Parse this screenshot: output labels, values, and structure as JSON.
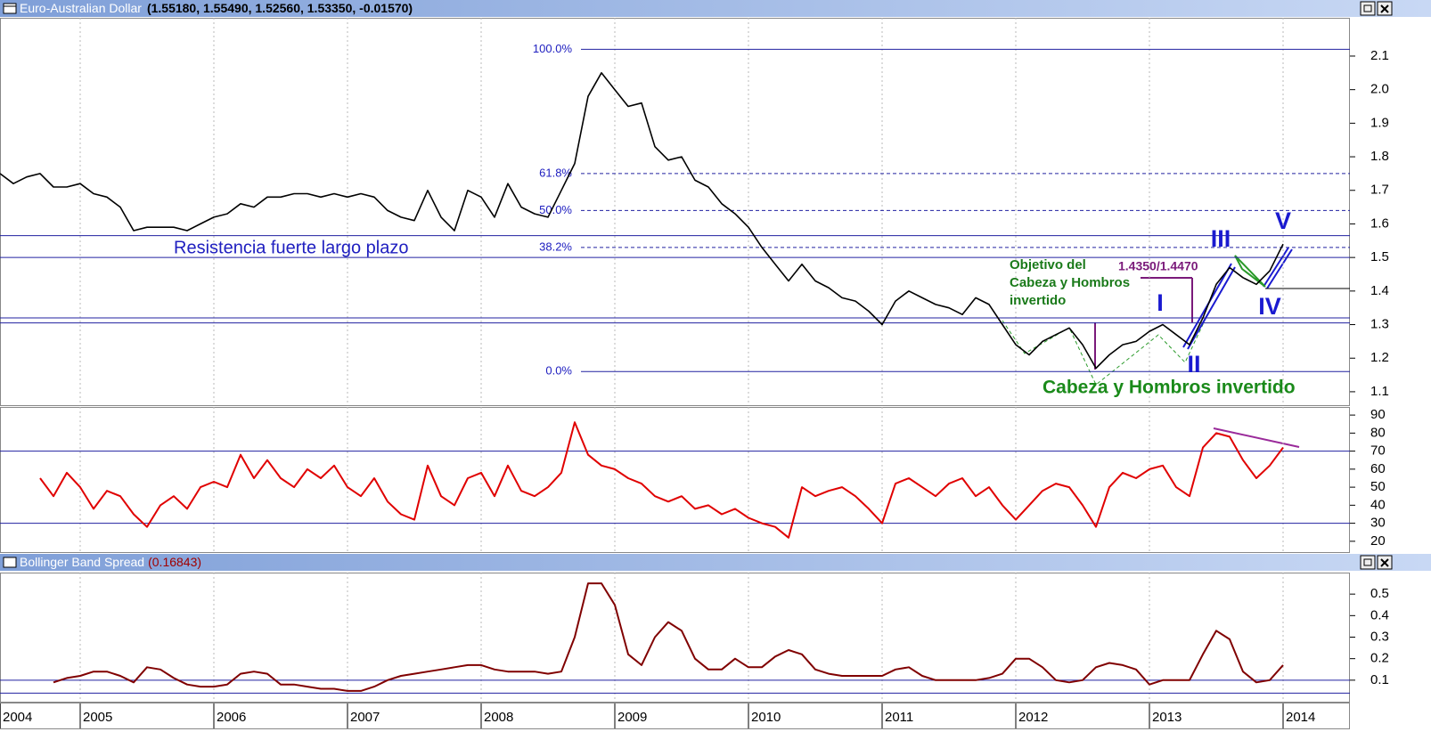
{
  "chart_data": [
    {
      "type": "line",
      "title": "Euro-Australian Dollar",
      "subtitle": "(1.55180, 1.55490, 1.52560, 1.53350, -0.01570)",
      "color": "#000000",
      "x": [
        2004.4,
        2004.5,
        2004.6,
        2004.7,
        2004.8,
        2004.9,
        2005.0,
        2005.1,
        2005.2,
        2005.3,
        2005.4,
        2005.5,
        2005.6,
        2005.7,
        2005.8,
        2005.9,
        2006.0,
        2006.1,
        2006.2,
        2006.3,
        2006.4,
        2006.5,
        2006.6,
        2006.7,
        2006.8,
        2006.9,
        2007.0,
        2007.1,
        2007.2,
        2007.3,
        2007.4,
        2007.5,
        2007.6,
        2007.7,
        2007.8,
        2007.9,
        2008.0,
        2008.1,
        2008.2,
        2008.3,
        2008.4,
        2008.5,
        2008.6,
        2008.7,
        2008.8,
        2008.9,
        2009.0,
        2009.1,
        2009.2,
        2009.3,
        2009.4,
        2009.5,
        2009.6,
        2009.7,
        2009.8,
        2009.9,
        2010.0,
        2010.1,
        2010.2,
        2010.3,
        2010.4,
        2010.5,
        2010.6,
        2010.7,
        2010.8,
        2010.9,
        2011.0,
        2011.1,
        2011.2,
        2011.3,
        2011.4,
        2011.5,
        2011.6,
        2011.7,
        2011.8,
        2011.9,
        2012.0,
        2012.1,
        2012.2,
        2012.3,
        2012.4,
        2012.5,
        2012.6,
        2012.7,
        2012.8,
        2012.9,
        2013.0,
        2013.1,
        2013.2,
        2013.3,
        2013.4,
        2013.5,
        2013.6,
        2013.7,
        2013.8,
        2013.9,
        2014.0
      ],
      "values": [
        1.75,
        1.72,
        1.74,
        1.75,
        1.71,
        1.71,
        1.72,
        1.69,
        1.68,
        1.65,
        1.58,
        1.59,
        1.59,
        1.59,
        1.58,
        1.6,
        1.62,
        1.63,
        1.66,
        1.65,
        1.68,
        1.68,
        1.69,
        1.69,
        1.68,
        1.69,
        1.68,
        1.69,
        1.68,
        1.64,
        1.62,
        1.61,
        1.7,
        1.62,
        1.58,
        1.7,
        1.68,
        1.62,
        1.72,
        1.65,
        1.63,
        1.62,
        1.7,
        1.78,
        1.98,
        2.05,
        2.0,
        1.95,
        1.96,
        1.83,
        1.79,
        1.8,
        1.73,
        1.71,
        1.66,
        1.63,
        1.59,
        1.53,
        1.48,
        1.43,
        1.48,
        1.43,
        1.41,
        1.38,
        1.37,
        1.34,
        1.3,
        1.37,
        1.4,
        1.38,
        1.36,
        1.35,
        1.33,
        1.38,
        1.36,
        1.3,
        1.24,
        1.21,
        1.25,
        1.27,
        1.29,
        1.24,
        1.17,
        1.21,
        1.24,
        1.25,
        1.28,
        1.3,
        1.27,
        1.24,
        1.32,
        1.42,
        1.47,
        1.44,
        1.42,
        1.46,
        1.54
      ],
      "xlim": [
        2004.4,
        2014.5
      ],
      "ylim": [
        1.06,
        2.214
      ],
      "yticks": [
        1.1,
        1.2,
        1.3,
        1.4,
        1.5,
        1.6,
        1.7,
        1.8,
        1.9,
        {
          "value": 2,
          "label": "2.0"
        },
        2.1
      ],
      "grid": true,
      "hlines": [
        1.565,
        1.5,
        1.32,
        1.305
      ],
      "fib_levels": [
        {
          "value": 2.12,
          "label": "100.0%"
        },
        {
          "value": 1.75,
          "label": "61.8%"
        },
        {
          "value": 1.64,
          "label": "50.0%"
        },
        {
          "value": 1.53,
          "label": "38.2%"
        },
        {
          "value": 1.16,
          "label": "0.0%"
        }
      ],
      "annotations": [
        "Resistencia fuerte largo plazo",
        "1.4350/1.4470",
        "Cabeza y Hombros invertido"
      ],
      "objective": [
        "Objetivo del",
        "Cabeza y Hombros",
        "invertido"
      ],
      "waves": [
        "I",
        "II",
        "III",
        "IV",
        "V"
      ]
    },
    {
      "type": "line",
      "color": "#e00000",
      "x": [
        2004.4,
        2004.5,
        2004.6,
        2004.7,
        2004.8,
        2004.9,
        2005.0,
        2005.1,
        2005.2,
        2005.3,
        2005.4,
        2005.5,
        2005.6,
        2005.7,
        2005.8,
        2005.9,
        2006.0,
        2006.1,
        2006.2,
        2006.3,
        2006.4,
        2006.5,
        2006.6,
        2006.7,
        2006.8,
        2006.9,
        2007.0,
        2007.1,
        2007.2,
        2007.3,
        2007.4,
        2007.5,
        2007.6,
        2007.7,
        2007.8,
        2007.9,
        2008.0,
        2008.1,
        2008.2,
        2008.3,
        2008.4,
        2008.5,
        2008.6,
        2008.7,
        2008.8,
        2008.9,
        2009.0,
        2009.1,
        2009.2,
        2009.3,
        2009.4,
        2009.5,
        2009.6,
        2009.7,
        2009.8,
        2009.9,
        2010.0,
        2010.1,
        2010.2,
        2010.3,
        2010.4,
        2010.5,
        2010.6,
        2010.7,
        2010.8,
        2010.9,
        2011.0,
        2011.1,
        2011.2,
        2011.3,
        2011.4,
        2011.5,
        2011.6,
        2011.7,
        2011.8,
        2011.9,
        2012.0,
        2012.1,
        2012.2,
        2012.3,
        2012.4,
        2012.5,
        2012.6,
        2012.7,
        2012.8,
        2012.9,
        2013.0,
        2013.1,
        2013.2,
        2013.3,
        2013.4,
        2013.5,
        2013.6,
        2013.7,
        2013.8,
        2013.9,
        2014.0
      ],
      "values": [
        null,
        null,
        null,
        55,
        45,
        58,
        50,
        38,
        48,
        45,
        35,
        28,
        40,
        45,
        38,
        50,
        53,
        50,
        68,
        55,
        65,
        55,
        50,
        60,
        55,
        62,
        50,
        45,
        55,
        42,
        35,
        32,
        62,
        45,
        40,
        55,
        58,
        45,
        62,
        48,
        45,
        50,
        58,
        86,
        68,
        62,
        60,
        55,
        52,
        45,
        42,
        45,
        38,
        40,
        35,
        38,
        33,
        30,
        28,
        22,
        50,
        45,
        48,
        50,
        45,
        38,
        30,
        52,
        55,
        50,
        45,
        52,
        55,
        45,
        50,
        40,
        32,
        40,
        48,
        52,
        50,
        40,
        28,
        50,
        58,
        55,
        60,
        62,
        50,
        45,
        72,
        80,
        78,
        65,
        55,
        62,
        72
      ],
      "xlim": [
        2004.4,
        2014.5
      ],
      "ylim": [
        14,
        94.5
      ],
      "yticks": [
        20,
        30,
        40,
        50,
        60,
        70,
        80,
        90
      ],
      "grid": true,
      "hlines": [
        70,
        30
      ]
    },
    {
      "type": "line",
      "title": "Bollinger Band Spread",
      "subtitle": "(0.16843)",
      "color": "#800000",
      "x": [
        2004.4,
        2004.5,
        2004.6,
        2004.7,
        2004.8,
        2004.9,
        2005.0,
        2005.1,
        2005.2,
        2005.3,
        2005.4,
        2005.5,
        2005.6,
        2005.7,
        2005.8,
        2005.9,
        2006.0,
        2006.1,
        2006.2,
        2006.3,
        2006.4,
        2006.5,
        2006.6,
        2006.7,
        2006.8,
        2006.9,
        2007.0,
        2007.1,
        2007.2,
        2007.3,
        2007.4,
        2007.5,
        2007.6,
        2007.7,
        2007.8,
        2007.9,
        2008.0,
        2008.1,
        2008.2,
        2008.3,
        2008.4,
        2008.5,
        2008.6,
        2008.7,
        2008.8,
        2008.9,
        2009.0,
        2009.1,
        2009.2,
        2009.3,
        2009.4,
        2009.5,
        2009.6,
        2009.7,
        2009.8,
        2009.9,
        2010.0,
        2010.1,
        2010.2,
        2010.3,
        2010.4,
        2010.5,
        2010.6,
        2010.7,
        2010.8,
        2010.9,
        2011.0,
        2011.1,
        2011.2,
        2011.3,
        2011.4,
        2011.5,
        2011.6,
        2011.7,
        2011.8,
        2011.9,
        2012.0,
        2012.1,
        2012.2,
        2012.3,
        2012.4,
        2012.5,
        2012.6,
        2012.7,
        2012.8,
        2012.9,
        2013.0,
        2013.1,
        2013.2,
        2013.3,
        2013.4,
        2013.5,
        2013.6,
        2013.7,
        2013.8,
        2013.9,
        2014.0
      ],
      "values": [
        null,
        null,
        null,
        null,
        0.09,
        0.11,
        0.12,
        0.14,
        0.14,
        0.12,
        0.09,
        0.16,
        0.15,
        0.11,
        0.08,
        0.07,
        0.07,
        0.08,
        0.13,
        0.14,
        0.13,
        0.08,
        0.08,
        0.07,
        0.06,
        0.06,
        0.05,
        0.05,
        0.07,
        0.1,
        0.12,
        0.13,
        0.14,
        0.15,
        0.16,
        0.17,
        0.17,
        0.15,
        0.14,
        0.14,
        0.14,
        0.13,
        0.14,
        0.3,
        0.55,
        0.55,
        0.45,
        0.22,
        0.17,
        0.3,
        0.37,
        0.33,
        0.2,
        0.15,
        0.15,
        0.2,
        0.16,
        0.16,
        0.21,
        0.24,
        0.22,
        0.15,
        0.13,
        0.12,
        0.12,
        0.12,
        0.12,
        0.15,
        0.16,
        0.12,
        0.1,
        0.1,
        0.1,
        0.1,
        0.11,
        0.13,
        0.2,
        0.2,
        0.16,
        0.1,
        0.09,
        0.1,
        0.16,
        0.18,
        0.17,
        0.15,
        0.08,
        0.1,
        0.1,
        0.1,
        0.22,
        0.33,
        0.29,
        0.14,
        0.09,
        0.1,
        0.17
      ],
      "xlim": [
        2004.4,
        2014.5
      ],
      "ylim": [
        0,
        0.6
      ],
      "yticks": [
        0.1,
        0.2,
        0.3,
        0.4,
        0.5
      ],
      "xticks": [
        {
          "value": 2004.4,
          "label": "2004"
        },
        2005,
        2006,
        2007,
        2008,
        2009,
        2010,
        2011,
        2012,
        2013,
        2014
      ],
      "grid": true,
      "hlines": [
        0.1,
        0.04
      ]
    }
  ]
}
